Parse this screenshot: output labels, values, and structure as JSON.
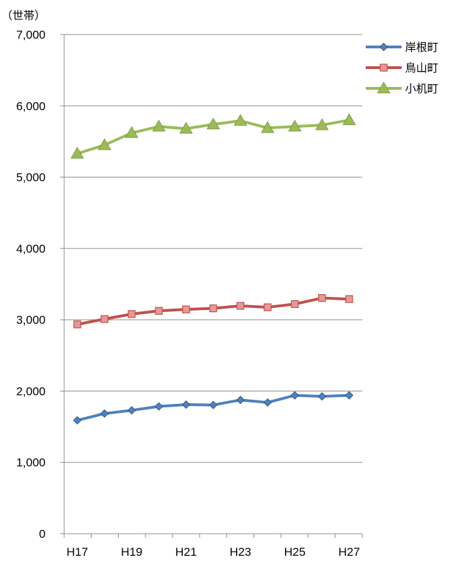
{
  "chart_data": {
    "type": "line",
    "title": "",
    "unit_label": "（世帯）",
    "xlabel": "",
    "ylabel": "",
    "ylim": [
      0,
      7000
    ],
    "y_ticks": [
      0,
      1000,
      2000,
      3000,
      4000,
      5000,
      6000,
      7000
    ],
    "y_tick_labels": [
      "0",
      "1,000",
      "2,000",
      "3,000",
      "4,000",
      "5,000",
      "6,000",
      "7,000"
    ],
    "categories": [
      "H17",
      "H18",
      "H19",
      "H20",
      "H21",
      "H22",
      "H23",
      "H24",
      "H25",
      "H26",
      "H27"
    ],
    "x_tick_labels": [
      "H17",
      "",
      "H19",
      "",
      "H21",
      "",
      "H23",
      "",
      "H25",
      "",
      "H27"
    ],
    "grid": "horizontal",
    "legend": "top-right",
    "series": [
      {
        "name": "岸根町",
        "color": "#4f81bd",
        "marker": "diamond",
        "values": [
          1590,
          1685,
          1730,
          1785,
          1810,
          1805,
          1875,
          1840,
          1940,
          1925,
          1940
        ]
      },
      {
        "name": "鳥山町",
        "color": "#c0504d",
        "marker": "square",
        "values": [
          2935,
          3010,
          3080,
          3125,
          3145,
          3160,
          3195,
          3175,
          3220,
          3305,
          3290
        ]
      },
      {
        "name": "小机町",
        "color": "#9bbb59",
        "marker": "triangle",
        "values": [
          5330,
          5450,
          5620,
          5710,
          5680,
          5740,
          5790,
          5690,
          5710,
          5730,
          5800
        ]
      }
    ]
  }
}
